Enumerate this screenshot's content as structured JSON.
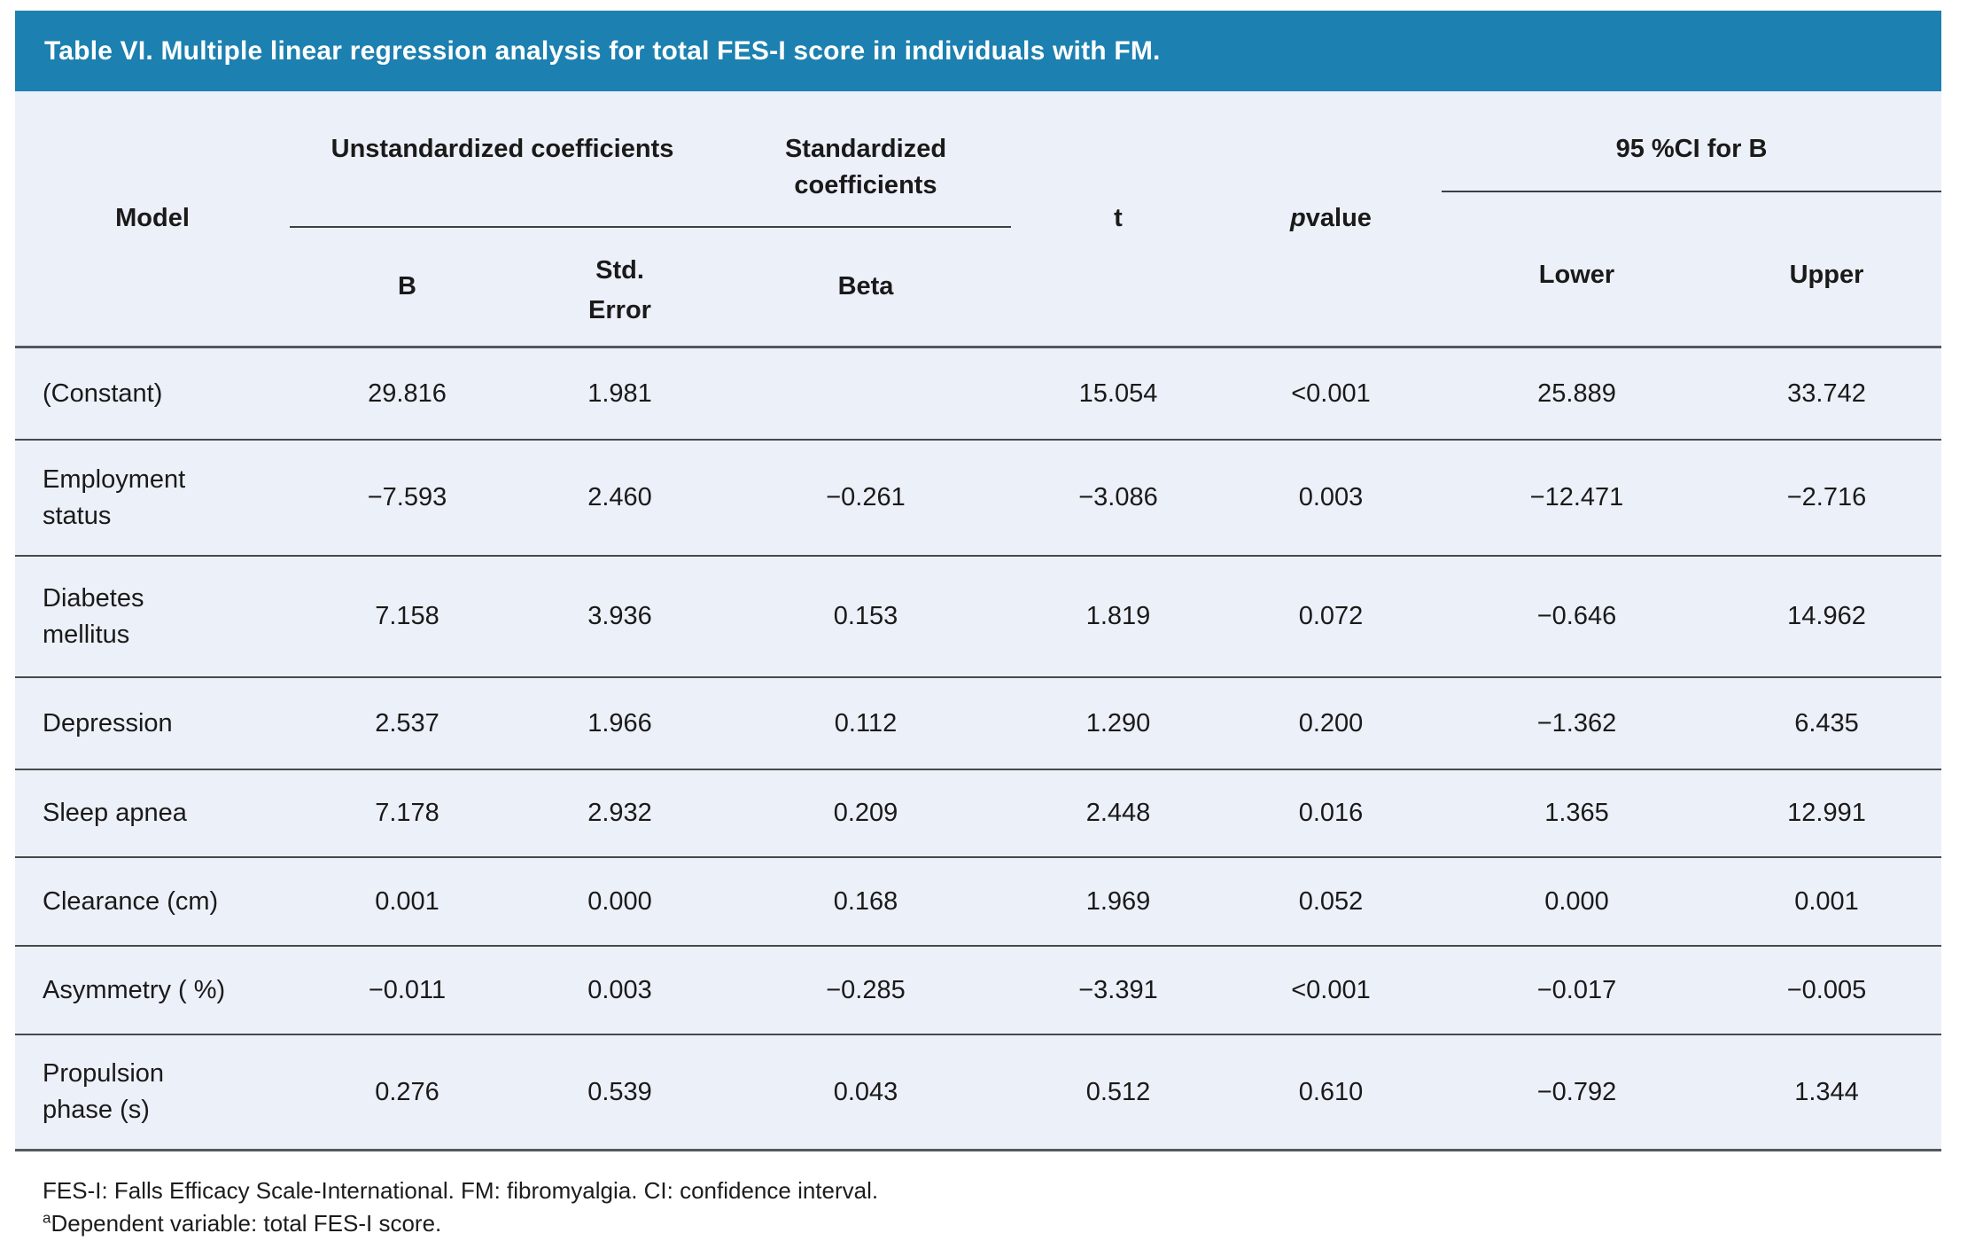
{
  "title": "Table VI. Multiple linear regression analysis for total FES-I score in individuals with FM.",
  "colors": {
    "title_bar_bg": "#1c80b0",
    "table_bg": "#ecf0f8",
    "rule_dark": "#54575d",
    "row_rule": "#46494d",
    "title_text": "#ffffff",
    "body_text": "#1a1a1a"
  },
  "header": {
    "model": "Model",
    "group_unstandardized": "Unstandardized coefficients",
    "group_standardized": "Standardized coefficients",
    "t": "t",
    "p_symbol": "p",
    "p_rest": " value",
    "group_ci": "95 %CI for B",
    "b": "B",
    "std_error": "Std.\nError",
    "beta": "Beta",
    "lower": "Lower",
    "upper": "Upper"
  },
  "rows": [
    {
      "model": "(Constant)",
      "b": "29.816",
      "std_error": "1.981",
      "beta": "",
      "t": "15.054",
      "p": "<0.001",
      "lower": "25.889",
      "upper": "33.742"
    },
    {
      "model": "Employment\nstatus",
      "b": "−7.593",
      "std_error": "2.460",
      "beta": "−0.261",
      "t": "−3.086",
      "p": "0.003",
      "lower": "−12.471",
      "upper": "−2.716"
    },
    {
      "model": "Diabetes\nmellitus",
      "b": "7.158",
      "std_error": "3.936",
      "beta": "0.153",
      "t": "1.819",
      "p": "0.072",
      "lower": "−0.646",
      "upper": "14.962"
    },
    {
      "model": "Depression",
      "b": "2.537",
      "std_error": "1.966",
      "beta": "0.112",
      "t": "1.290",
      "p": "0.200",
      "lower": "−1.362",
      "upper": "6.435"
    },
    {
      "model": "Sleep apnea",
      "b": "7.178",
      "std_error": "2.932",
      "beta": "0.209",
      "t": "2.448",
      "p": "0.016",
      "lower": "1.365",
      "upper": "12.991"
    },
    {
      "model": "Clearance (cm)",
      "b": "0.001",
      "std_error": "0.000",
      "beta": "0.168",
      "t": "1.969",
      "p": "0.052",
      "lower": "0.000",
      "upper": "0.001"
    },
    {
      "model": "Asymmetry ( %)",
      "b": "−0.011",
      "std_error": "0.003",
      "beta": "−0.285",
      "t": "−3.391",
      "p": "<0.001",
      "lower": "−0.017",
      "upper": "−0.005"
    },
    {
      "model": "Propulsion\nphase (s)",
      "b": "0.276",
      "std_error": "0.539",
      "beta": "0.043",
      "t": "0.512",
      "p": "0.610",
      "lower": "−0.792",
      "upper": "1.344"
    }
  ],
  "footnotes": {
    "abbreviations": "FES-I: Falls Efficacy Scale-International. FM: fibromyalgia. CI: confidence interval.",
    "dependent_sup": "a",
    "dependent": "Dependent variable: total FES-I score."
  }
}
